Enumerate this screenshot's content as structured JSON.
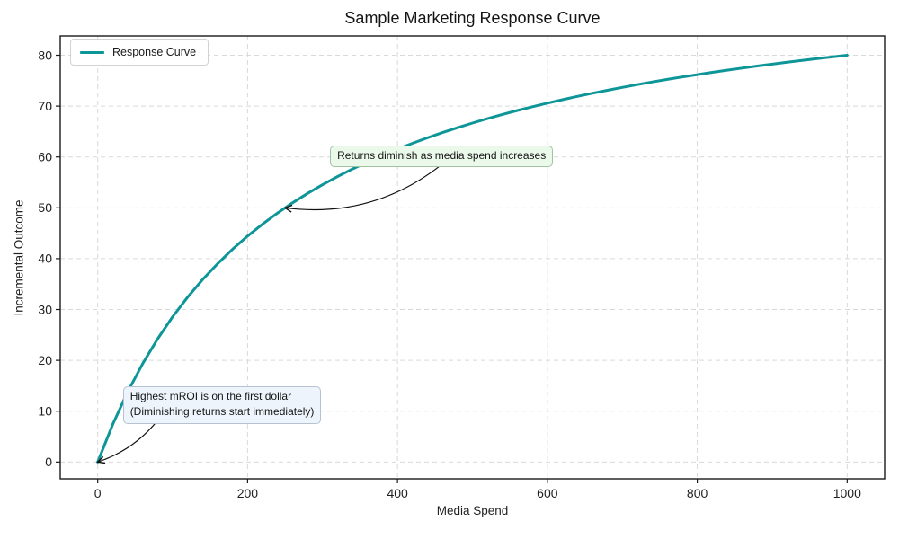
{
  "chart_data": {
    "type": "line",
    "title": "Sample Marketing Response Curve",
    "xlabel": "Media Spend",
    "ylabel": "Incremental Outcome",
    "xlim": [
      -50,
      1050
    ],
    "ylim": [
      -3.3,
      83.8
    ],
    "x_ticks": [
      0,
      200,
      400,
      600,
      800,
      1000
    ],
    "y_ticks": [
      0,
      10,
      20,
      30,
      40,
      50,
      60,
      70,
      80
    ],
    "grid": true,
    "legend_position": "upper left",
    "colors": {
      "grid": "#d9d9d9",
      "spine": "#1a1a1a",
      "tick_text": "#1f1f1f",
      "arrow": "#111111"
    },
    "series": [
      {
        "name": "Response Curve",
        "color": "#0d9598",
        "x": [
          0,
          20,
          40,
          60,
          80,
          100,
          120,
          140,
          160,
          180,
          200,
          220,
          240,
          260,
          280,
          300,
          320,
          340,
          360,
          380,
          400,
          420,
          440,
          460,
          480,
          500,
          520,
          540,
          560,
          580,
          600,
          620,
          640,
          660,
          680,
          700,
          720,
          740,
          760,
          780,
          800,
          820,
          840,
          860,
          880,
          900,
          920,
          940,
          960,
          980,
          1000
        ],
        "y": [
          0,
          7.41,
          13.79,
          19.35,
          24.24,
          28.57,
          32.43,
          35.9,
          39.02,
          41.86,
          44.44,
          46.81,
          48.98,
          50.98,
          52.83,
          54.55,
          56.14,
          57.63,
          59.02,
          60.32,
          61.54,
          62.69,
          63.77,
          64.79,
          65.75,
          66.67,
          67.53,
          68.35,
          69.14,
          69.88,
          70.59,
          71.26,
          71.91,
          72.53,
          73.12,
          73.68,
          74.23,
          74.75,
          75.25,
          75.73,
          76.19,
          76.64,
          77.06,
          77.48,
          77.88,
          78.26,
          78.63,
          78.99,
          79.34,
          79.67,
          80.0
        ]
      }
    ],
    "annotations": [
      {
        "text": "Returns diminish as media spend increases",
        "xy": [
          250,
          50
        ],
        "box_pos": [
          310,
          62.3
        ],
        "arrow_start": [
          459,
          58.5
        ],
        "bow": 38,
        "fill": "#ebf9eb",
        "border": "#a2c3a2"
      },
      {
        "lines": [
          "Highest mROI is on the first dollar",
          "(Diminishing returns start immediately)"
        ],
        "xy": [
          0,
          0
        ],
        "box_pos": [
          33.6,
          14.9
        ],
        "arrow_start": [
          80,
          8.2
        ],
        "bow": 12,
        "fill": "#edf4fb",
        "border": "#b6c2d2"
      }
    ]
  }
}
